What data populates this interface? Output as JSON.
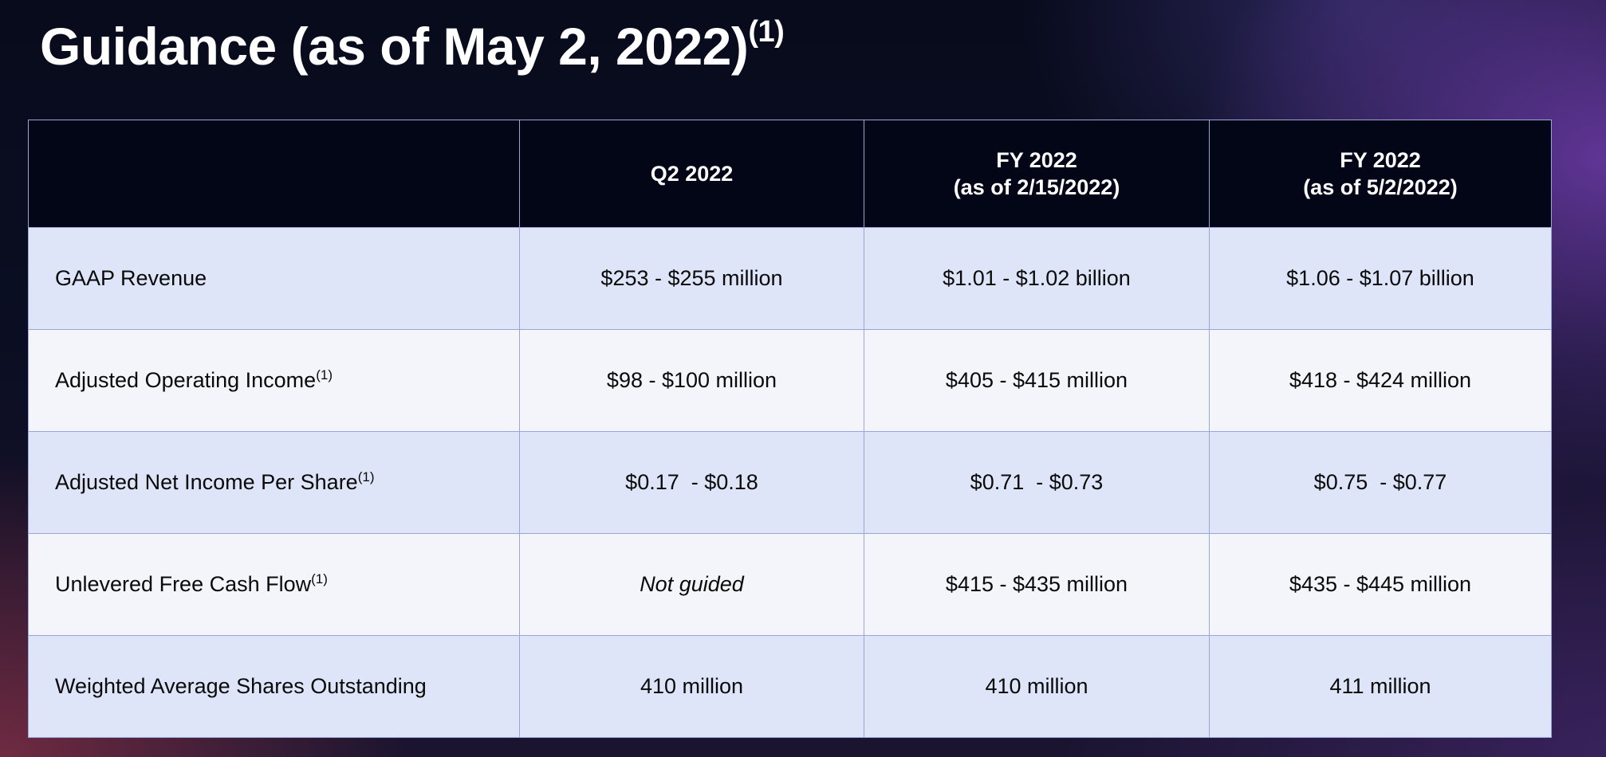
{
  "title": {
    "text": "Guidance (as of May 2, 2022)",
    "footnote": "(1)"
  },
  "table": {
    "headers": [
      {
        "line1": "",
        "line2": ""
      },
      {
        "line1": "Q2 2022",
        "line2": ""
      },
      {
        "line1": "FY 2022",
        "line2": "(as of 2/15/2022)"
      },
      {
        "line1": "FY 2022",
        "line2": "(as of 5/2/2022)"
      }
    ],
    "rows": [
      {
        "label": "GAAP Revenue",
        "footnote": "",
        "q2_2022": "$253 - $255 million",
        "fy_2022_feb": "$1.01 - $1.02 billion",
        "fy_2022_may": "$1.06 - $1.07 billion"
      },
      {
        "label": "Adjusted Operating Income",
        "footnote": "(1)",
        "q2_2022": "$98 - $100 million",
        "fy_2022_feb": "$405 - $415 million",
        "fy_2022_may": "$418 - $424 million"
      },
      {
        "label": "Adjusted Net Income Per Share",
        "footnote": "(1)",
        "q2_2022": "$0.17  - $0.18",
        "fy_2022_feb": "$0.71  - $0.73",
        "fy_2022_may": "$0.75  - $0.77"
      },
      {
        "label": "Unlevered Free Cash Flow",
        "footnote": "(1)",
        "q2_2022": "Not guided",
        "fy_2022_feb": "$415 - $435 million",
        "fy_2022_may": "$435 - $445 million"
      },
      {
        "label": "Weighted Average Shares Outstanding",
        "footnote": "",
        "q2_2022": "410 million",
        "fy_2022_feb": "410 million",
        "fy_2022_may": "411 million"
      }
    ]
  },
  "colors": {
    "background": "#0b0e22",
    "header_bg": "#030616",
    "row_shade": "#dfe5f8",
    "row_light": "#f3f5fa",
    "grid_line": "#9aa6d6"
  }
}
